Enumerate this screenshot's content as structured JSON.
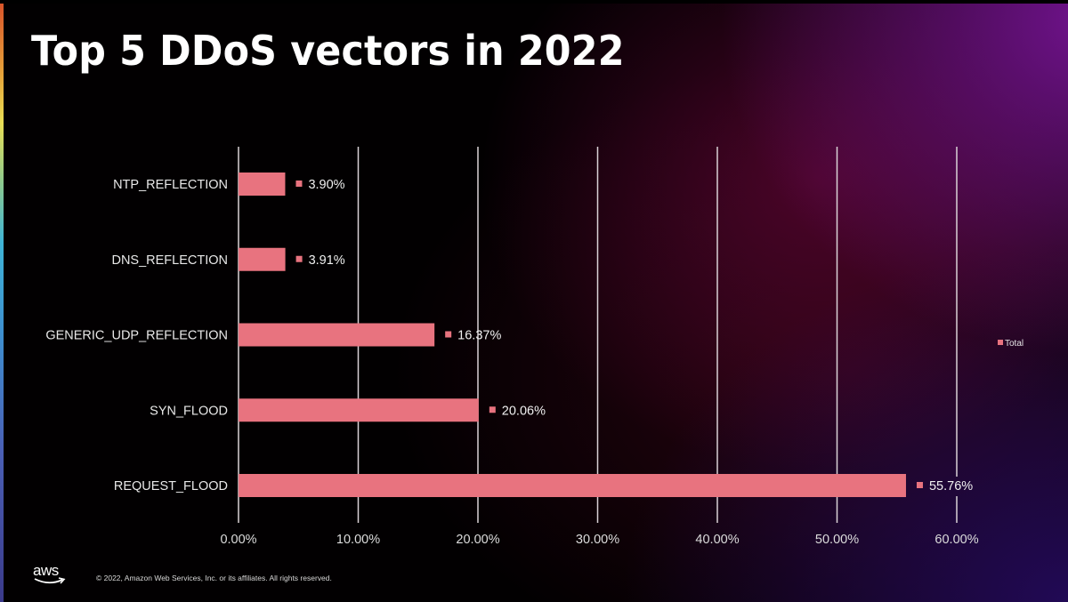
{
  "slide": {
    "title": "Top 5 DDoS vectors in 2022",
    "footer": {
      "logo_text": "aws",
      "copyright": "© 2022, Amazon Web Services, Inc. or its affiliates. All rights reserved."
    }
  },
  "colors": {
    "bar": "#e8737f",
    "gridline": "#d9d2d6",
    "text": "#e8e8e8"
  },
  "chart_data": {
    "type": "bar",
    "orientation": "horizontal",
    "title": "Top 5 DDoS vectors in 2022",
    "xlabel": "",
    "ylabel": "",
    "categories": [
      "NTP_REFLECTION",
      "DNS_REFLECTION",
      "GENERIC_UDP_REFLECTION",
      "SYN_FLOOD",
      "REQUEST_FLOOD"
    ],
    "series": [
      {
        "name": "Total",
        "values": [
          3.9,
          3.91,
          16.37,
          20.06,
          55.76
        ],
        "labels": [
          "3.90%",
          "3.91%",
          "16.37%",
          "20.06%",
          "55.76%"
        ]
      }
    ],
    "xlim": [
      0,
      60
    ],
    "xticks": [
      0,
      10,
      20,
      30,
      40,
      50,
      60
    ],
    "xtick_labels": [
      "0.00%",
      "10.00%",
      "20.00%",
      "30.00%",
      "40.00%",
      "50.00%",
      "60.00%"
    ],
    "grid": "vertical",
    "legend": {
      "entries": [
        "Total"
      ],
      "position": "right"
    }
  }
}
